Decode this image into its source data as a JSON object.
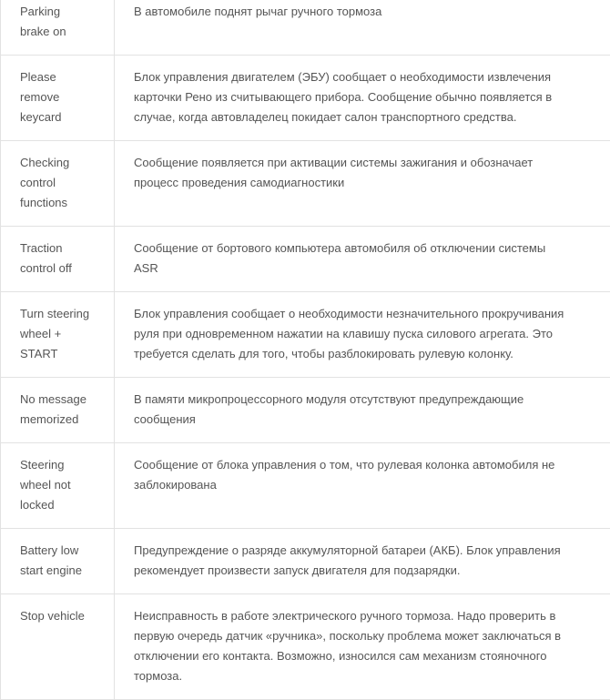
{
  "rows": [
    {
      "code": "Parking\nbrake on",
      "description": "В автомобиле поднят рычаг ручного тормоза"
    },
    {
      "code": "Please\nremove\nkeycard",
      "description": "Блок управления двигателем (ЭБУ) сообщает о необходимости извлечения\nкарточки Рено из считывающего прибора. Сообщение обычно появляется в\nслучае, когда автовладелец покидает салон транспортного средства."
    },
    {
      "code": "Checking\ncontrol\nfunctions",
      "description": "Сообщение появляется при активации системы зажигания и обозначает\nпроцесс проведения самодиагностики"
    },
    {
      "code": "Traction\ncontrol off",
      "description": "Сообщение от бортового компьютера автомобиля об отключении системы\nASR"
    },
    {
      "code": "Turn steering\nwheel +\nSTART",
      "description": "Блок управления сообщает о необходимости незначительного прокручивания\nруля при одновременном нажатии на клавишу пуска силового агрегата. Это\nтребуется сделать для того, чтобы разблокировать рулевую колонку."
    },
    {
      "code": "No message\nmemorized",
      "description": "В памяти микропроцессорного модуля отсутствуют предупреждающие\nсообщения"
    },
    {
      "code": "Steering\nwheel not\nlocked",
      "description": "Сообщение от блока управления о том, что рулевая колонка автомобиля не\nзаблокирована"
    },
    {
      "code": "Battery low\nstart engine",
      "description": "Предупреждение о разряде аккумуляторной батареи (АКБ). Блок управления\nрекомендует произвести запуск двигателя для подзарядки."
    },
    {
      "code": "Stop vehicle",
      "description": "Неисправность в работе электрического ручного тормоза. Надо проверить в\nпервую очередь датчик «ручника», поскольку проблема может заключаться в\nотключении его контакта. Возможно, износился сам механизм стояночного\nтормоза."
    }
  ]
}
